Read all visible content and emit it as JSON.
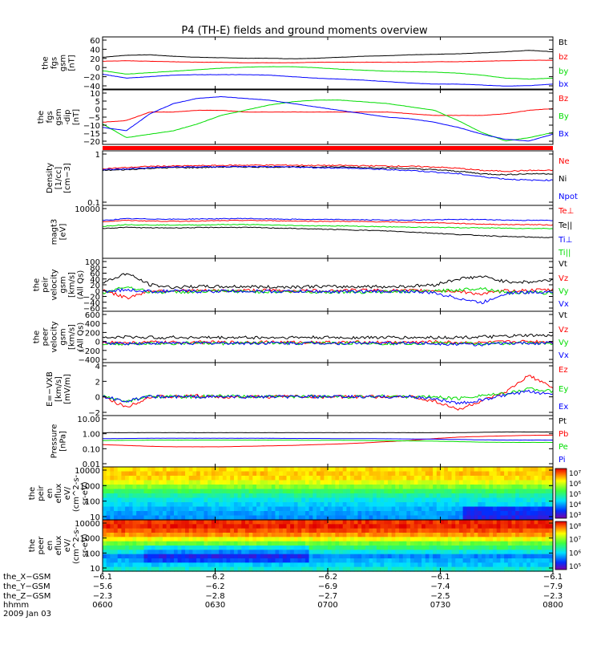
{
  "title": "P4 (TH-E) fields and ground moments overview",
  "colors": {
    "black": "#000000",
    "red": "#ff0000",
    "green": "#00dd00",
    "blue": "#0000ff",
    "axis": "#000000"
  },
  "chart_data": [
    {
      "type": "line",
      "ylabel": [
        "the",
        "fgs",
        "gsm",
        "[nT]"
      ],
      "yticks": [
        "60",
        "40",
        "20",
        "0",
        "−20",
        "−40"
      ],
      "ylim": [
        -40,
        65
      ],
      "series": [
        {
          "name": "Bt",
          "color": "black",
          "values": [
            24,
            28,
            29,
            26,
            24,
            23,
            22,
            22,
            21,
            22,
            24,
            26,
            27,
            29,
            30,
            31,
            33,
            35,
            38,
            35
          ]
        },
        {
          "name": "bz",
          "color": "red",
          "values": [
            16,
            17,
            16,
            15,
            14,
            14,
            13,
            13,
            13,
            14,
            14,
            14,
            14,
            14,
            15,
            15,
            16,
            17,
            18,
            18
          ]
        },
        {
          "name": "by",
          "color": "green",
          "values": [
            -3,
            -10,
            -7,
            -4,
            -1,
            2,
            4,
            5,
            5,
            3,
            0,
            -2,
            -4,
            -5,
            -6,
            -8,
            -12,
            -18,
            -20,
            -18
          ]
        },
        {
          "name": "bx",
          "color": "blue",
          "values": [
            -10,
            -18,
            -15,
            -12,
            -11,
            -11,
            -11,
            -12,
            -15,
            -18,
            -20,
            -22,
            -25,
            -28,
            -30,
            -30,
            -32,
            -34,
            -33,
            -30
          ]
        }
      ]
    },
    {
      "type": "line",
      "ylabel": [
        "the",
        "fgs",
        "gsm",
        "-dip",
        "[nT]"
      ],
      "yticks": [
        "10",
        "5",
        "0",
        "−5",
        "−10",
        "−15",
        "−20"
      ],
      "ylim": [
        -22,
        10
      ],
      "series": [
        {
          "name": "Bz",
          "color": "red",
          "values": [
            -9,
            -8,
            -3,
            -3,
            -2,
            -2,
            -3,
            -3,
            -3,
            -3,
            -3,
            -3,
            -3,
            -4,
            -5,
            -5,
            -5,
            -4,
            -2,
            -1
          ]
        },
        {
          "name": "By",
          "color": "green",
          "values": [
            -10,
            -18,
            -16,
            -14,
            -10,
            -5,
            -2,
            1,
            3,
            4,
            4,
            3,
            2,
            0,
            -2,
            -8,
            -15,
            -20,
            -18,
            -15
          ]
        },
        {
          "name": "Bx",
          "color": "blue",
          "values": [
            -12,
            -14,
            -4,
            2,
            5,
            6,
            5,
            4,
            2,
            0,
            -2,
            -4,
            -6,
            -7,
            -9,
            -12,
            -16,
            -19,
            -20,
            -16
          ]
        }
      ]
    },
    {
      "type": "line",
      "ylabel": [
        "Density",
        "[1/cc]",
        "[cm−3]"
      ],
      "log": true,
      "yticks": [
        "1",
        "0.1"
      ],
      "ylim": [
        0.08,
        1.4
      ],
      "series": [
        {
          "name": "Ne",
          "color": "red",
          "values": [
            0.55,
            0.58,
            0.62,
            0.63,
            0.64,
            0.65,
            0.66,
            0.66,
            0.66,
            0.65,
            0.65,
            0.64,
            0.63,
            0.62,
            0.6,
            0.56,
            0.5,
            0.48,
            0.5,
            0.5
          ]
        },
        {
          "name": "Ni",
          "color": "black",
          "values": [
            0.5,
            0.52,
            0.56,
            0.58,
            0.58,
            0.6,
            0.6,
            0.6,
            0.6,
            0.6,
            0.6,
            0.58,
            0.57,
            0.55,
            0.52,
            0.48,
            0.42,
            0.4,
            0.42,
            0.42
          ]
        },
        {
          "name": "Npot",
          "color": "blue",
          "values": [
            0.52,
            0.54,
            0.58,
            0.6,
            0.6,
            0.61,
            0.61,
            0.6,
            0.6,
            0.58,
            0.57,
            0.55,
            0.52,
            0.5,
            0.46,
            0.42,
            0.36,
            0.32,
            0.3,
            0.3
          ]
        }
      ]
    },
    {
      "type": "line",
      "ylabel": [
        "magt3",
        "[eV]"
      ],
      "log": true,
      "yticks": [
        "10000"
      ],
      "ylim": [
        200,
        14000
      ],
      "series": [
        {
          "name": "Te⊥",
          "color": "red",
          "values": [
            3800,
            4200,
            4000,
            3900,
            4000,
            4100,
            4200,
            4100,
            4000,
            3900,
            3900,
            3800,
            3700,
            3600,
            3500,
            3300,
            3100,
            3000,
            3000,
            2900
          ]
        },
        {
          "name": "Te||",
          "color": "black",
          "values": [
            2200,
            2400,
            2300,
            2300,
            2350,
            2400,
            2400,
            2300,
            2200,
            2100,
            2000,
            1900,
            1800,
            1650,
            1500,
            1350,
            1250,
            1150,
            1100,
            1050
          ]
        },
        {
          "name": "Ti⊥",
          "color": "blue",
          "values": [
            4200,
            4800,
            4700,
            4600,
            4700,
            4800,
            4900,
            4700,
            4600,
            4500,
            4500,
            4400,
            4300,
            4300,
            4400,
            4500,
            4500,
            4300,
            4200,
            4200
          ]
        },
        {
          "name": "Ti||",
          "color": "green",
          "values": [
            2600,
            3000,
            2900,
            2900,
            2900,
            3000,
            3000,
            2900,
            2800,
            2700,
            2700,
            2600,
            2500,
            2450,
            2400,
            2350,
            2300,
            2250,
            2200,
            2200
          ]
        }
      ]
    },
    {
      "type": "line",
      "ylabel": [
        "the",
        "peir",
        "velocity",
        "gsm",
        "[km/s]",
        "(All Qs)"
      ],
      "yticks": [
        "100",
        "80",
        "60",
        "40",
        "20",
        "0",
        "−20",
        "−40",
        "−60"
      ],
      "ylim": [
        -60,
        100
      ],
      "series": [
        {
          "name": "Vt",
          "color": "black",
          "values": [
            25,
            55,
            20,
            12,
            15,
            14,
            15,
            13,
            14,
            15,
            14,
            15,
            14,
            16,
            20,
            38,
            45,
            30,
            28,
            35
          ]
        },
        {
          "name": "Vz",
          "color": "red",
          "values": [
            5,
            -20,
            2,
            3,
            2,
            2,
            3,
            3,
            2,
            2,
            3,
            4,
            3,
            2,
            3,
            0,
            -8,
            2,
            3,
            5
          ]
        },
        {
          "name": "Vy",
          "color": "green",
          "values": [
            -5,
            15,
            -2,
            -2,
            -1,
            0,
            0,
            -1,
            -1,
            -2,
            -1,
            -2,
            -1,
            0,
            0,
            5,
            10,
            -3,
            -3,
            -5
          ]
        },
        {
          "name": "Vx",
          "color": "blue",
          "values": [
            0,
            5,
            0,
            1,
            0,
            1,
            1,
            0,
            0,
            0,
            -1,
            0,
            0,
            0,
            -5,
            -20,
            -35,
            -5,
            -3,
            0
          ]
        }
      ]
    },
    {
      "type": "line",
      "ylabel": [
        "the",
        "peer",
        "velocity",
        "gsm",
        "[km/s]",
        "(All Qs)"
      ],
      "yticks": [
        "600",
        "400",
        "200",
        "0",
        "−200",
        "−400"
      ],
      "ylim": [
        -400,
        620
      ],
      "series": [
        {
          "name": "Vt",
          "color": "black",
          "values": [
            90,
            110,
            100,
            100,
            100,
            95,
            100,
            95,
            100,
            100,
            95,
            100,
            100,
            95,
            100,
            100,
            110,
            120,
            140,
            130
          ]
        },
        {
          "name": "Vz",
          "color": "red",
          "values": [
            10,
            -10,
            5,
            0,
            5,
            0,
            5,
            10,
            0,
            5,
            0,
            5,
            0,
            5,
            10,
            0,
            -5,
            10,
            20,
            15
          ]
        },
        {
          "name": "Vy",
          "color": "green",
          "values": [
            -20,
            -30,
            -10,
            -20,
            -10,
            -20,
            -15,
            -10,
            -20,
            -10,
            -15,
            -10,
            -20,
            -15,
            -10,
            -20,
            -25,
            -15,
            -10,
            -20
          ]
        },
        {
          "name": "Vx",
          "color": "blue",
          "values": [
            -10,
            -20,
            -15,
            -10,
            -15,
            -10,
            -15,
            -10,
            -15,
            -10,
            -15,
            -10,
            -15,
            -10,
            -20,
            -30,
            -40,
            -20,
            -15,
            -10
          ]
        }
      ]
    },
    {
      "type": "line",
      "ylabel": [
        "E=−VXB",
        "[km/s]",
        "[mV/m]"
      ],
      "yticks": [
        "4",
        "2",
        "0",
        "−2"
      ],
      "ylim": [
        -2.2,
        4
      ],
      "series": [
        {
          "name": "Ez",
          "color": "red",
          "values": [
            0,
            -1.2,
            0,
            0,
            0.1,
            0,
            0,
            0,
            0.1,
            0,
            0,
            0,
            0,
            0,
            -0.5,
            -1.5,
            -0.5,
            0.5,
            2.5,
            1
          ]
        },
        {
          "name": "Ey",
          "color": "green",
          "values": [
            0.1,
            -0.6,
            0.1,
            0,
            0,
            0.1,
            0,
            0,
            0,
            0.1,
            0,
            0,
            0.1,
            0,
            0,
            -0.2,
            0.2,
            0.3,
            1,
            0.6
          ]
        },
        {
          "name": "Ex",
          "color": "blue",
          "values": [
            0,
            -0.5,
            0,
            0,
            0,
            0,
            0,
            0,
            0,
            0,
            0,
            0,
            0,
            0,
            -0.2,
            -0.8,
            -0.4,
            0.2,
            0.6,
            0.3
          ]
        }
      ]
    },
    {
      "type": "line",
      "ylabel": [
        "Pressure",
        "[nPa]"
      ],
      "log": true,
      "yticks": [
        "10.00",
        "1.00",
        "0.10",
        "0.01"
      ],
      "ylim": [
        0.01,
        10
      ],
      "series": [
        {
          "name": "Pt",
          "color": "black",
          "values": [
            1.0,
            1.0,
            1.0,
            1.0,
            1.0,
            1.0,
            1.0,
            1.0,
            1.0,
            1.0,
            1.0,
            1.0,
            1.0,
            1.0,
            1.0,
            1.0,
            1.05,
            1.1,
            1.1,
            1.1
          ]
        },
        {
          "name": "Pb",
          "color": "red",
          "values": [
            0.2,
            0.18,
            0.16,
            0.15,
            0.15,
            0.15,
            0.16,
            0.17,
            0.18,
            0.2,
            0.22,
            0.25,
            0.3,
            0.35,
            0.45,
            0.55,
            0.6,
            0.65,
            0.7,
            0.72
          ]
        },
        {
          "name": "Pe",
          "color": "green",
          "values": [
            0.35,
            0.36,
            0.37,
            0.37,
            0.37,
            0.37,
            0.37,
            0.37,
            0.37,
            0.36,
            0.36,
            0.35,
            0.34,
            0.33,
            0.32,
            0.3,
            0.28,
            0.27,
            0.27,
            0.27
          ]
        },
        {
          "name": "Pi",
          "color": "blue",
          "values": [
            0.45,
            0.46,
            0.47,
            0.47,
            0.47,
            0.47,
            0.47,
            0.47,
            0.46,
            0.46,
            0.45,
            0.45,
            0.44,
            0.43,
            0.42,
            0.4,
            0.38,
            0.37,
            0.37,
            0.37
          ]
        }
      ]
    },
    {
      "type": "heatmap",
      "ylabel": [
        "the",
        "peir",
        "en",
        "eflux",
        "eV/",
        "(cm^2-s-",
        "sr-eV)"
      ],
      "yticks": [
        "10000",
        "1000",
        "100",
        "10"
      ],
      "ylim": [
        5,
        20000
      ],
      "cbar": [
        "10⁷",
        "10⁶",
        "10⁵",
        "10⁴",
        "10³"
      ],
      "profile": [
        0.78,
        0.8,
        0.78,
        0.72,
        0.62,
        0.52,
        0.44,
        0.38,
        0.34,
        0.3,
        0.28,
        0.26
      ]
    },
    {
      "type": "heatmap",
      "ylabel": [
        "the",
        "peer",
        "en",
        "eflux",
        "eV/",
        "(cm^2-s-",
        "sr-eV)"
      ],
      "yticks": [
        "10000",
        "1000",
        "100",
        "10"
      ],
      "ylim": [
        5,
        20000
      ],
      "cbar": [
        "10⁸",
        "10⁷",
        "10⁶",
        "10⁵"
      ],
      "profile": [
        0.95,
        0.97,
        0.92,
        0.85,
        0.74,
        0.6,
        0.45,
        0.33,
        0.2,
        0.25,
        0.33,
        0.4
      ]
    }
  ],
  "x_axis": {
    "row_labels": [
      "the_X−GSM",
      "the_Y−GSM",
      "the_Z−GSM",
      "hhmm",
      "2009 Jan 03"
    ],
    "ticks": [
      {
        "x": "−6.1",
        "y": "−5.6",
        "z": "−2.3",
        "t": "0600"
      },
      {
        "x": "−6.2",
        "y": "−6.2",
        "z": "−2.8",
        "t": "0630"
      },
      {
        "x": "−6.2",
        "y": "−6.9",
        "z": "−2.7",
        "t": "0700"
      },
      {
        "x": "−6.1",
        "y": "−7.4",
        "z": "−2.5",
        "t": "0730"
      },
      {
        "x": "−6.1",
        "y": "−7.9",
        "z": "−2.3",
        "t": "0800"
      }
    ]
  }
}
